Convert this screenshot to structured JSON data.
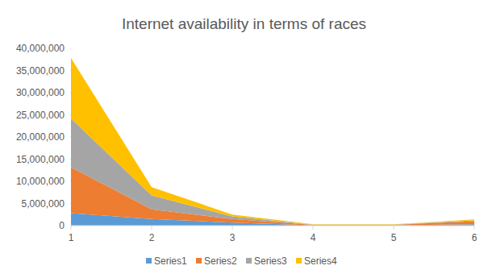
{
  "chart_data": {
    "type": "area",
    "title": "Internet availability in terms of races",
    "stacked": true,
    "grid": false,
    "legend": "bottom",
    "x": [
      1,
      2,
      3,
      4,
      5,
      6
    ],
    "xlim": [
      1,
      6
    ],
    "xticks": [
      1,
      2,
      3,
      4,
      5,
      6
    ],
    "ylim": [
      0,
      40000000
    ],
    "yticks": [
      0,
      {
        "value": 5000000,
        "label": "5,000,000"
      },
      {
        "value": 10000000,
        "label": "10,000,000"
      },
      {
        "value": 15000000,
        "label": "15,000,000"
      },
      {
        "value": 20000000,
        "label": "20,000,000"
      },
      {
        "value": 25000000,
        "label": "25,000,000"
      },
      {
        "value": 30000000,
        "label": "30,000,000"
      },
      {
        "value": 35000000,
        "label": "35,000,000"
      },
      {
        "value": 40000000,
        "label": "40,000,000"
      }
    ],
    "series": [
      {
        "name": "Series1",
        "color": "#5b9bd5",
        "values": [
          2800000,
          1500000,
          700000,
          100000,
          100000,
          300000
        ]
      },
      {
        "name": "Series2",
        "color": "#ed7d31",
        "values": [
          10400000,
          2200000,
          800000,
          100000,
          100000,
          700000
        ]
      },
      {
        "name": "Series3",
        "color": "#a5a5a5",
        "values": [
          11000000,
          3100000,
          600000,
          50000,
          50000,
          200000
        ]
      },
      {
        "name": "Series4",
        "color": "#ffc000",
        "values": [
          13600000,
          1900000,
          400000,
          50000,
          50000,
          200000
        ]
      }
    ]
  }
}
